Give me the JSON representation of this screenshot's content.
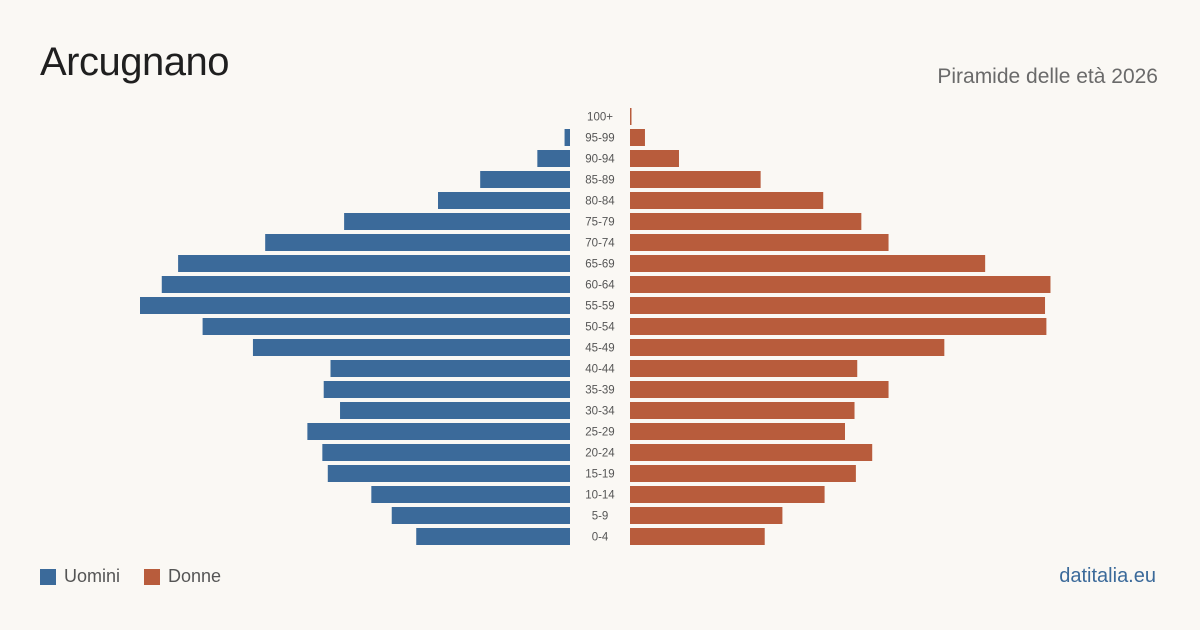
{
  "header": {
    "title": "Arcugnano",
    "subtitle": "Piramide delle età 2026"
  },
  "legend": {
    "male_label": "Uomini",
    "female_label": "Donne"
  },
  "footer": {
    "brand": "datitalia.eu"
  },
  "colors": {
    "male": "#3b6a9a",
    "female": "#b85c3c",
    "label": "#555555"
  },
  "chart_data": {
    "type": "bar",
    "orientation": "horizontal-population-pyramid",
    "categories": [
      "100+",
      "95-99",
      "90-94",
      "85-89",
      "80-84",
      "75-79",
      "70-74",
      "65-69",
      "60-64",
      "55-59",
      "50-54",
      "45-49",
      "40-44",
      "35-39",
      "30-34",
      "25-29",
      "20-24",
      "15-19",
      "10-14",
      "5-9",
      "0-4"
    ],
    "series": [
      {
        "name": "Uomini",
        "values": [
          0,
          4,
          24,
          66,
          97,
          166,
          224,
          288,
          300,
          316,
          270,
          233,
          176,
          181,
          169,
          193,
          182,
          178,
          146,
          131,
          113
        ]
      },
      {
        "name": "Donne",
        "values": [
          1,
          11,
          36,
          96,
          142,
          170,
          190,
          261,
          309,
          305,
          306,
          231,
          167,
          190,
          165,
          158,
          178,
          166,
          143,
          112,
          99
        ]
      }
    ],
    "legend_position": "bottom-left",
    "grid": false
  }
}
